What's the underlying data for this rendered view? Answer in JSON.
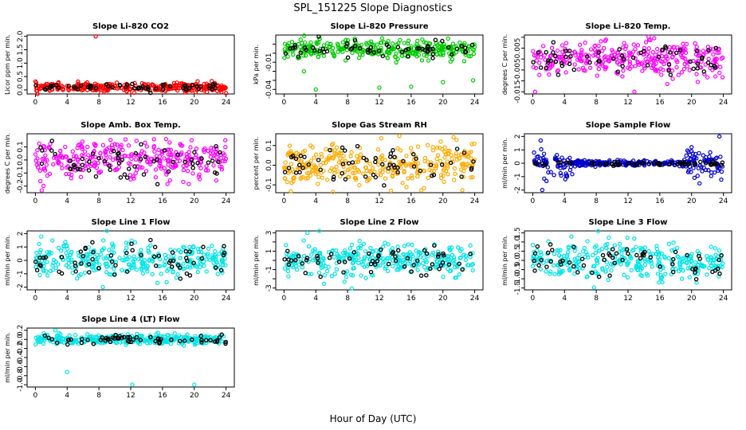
{
  "figure": {
    "title": "SPL_151225  Slope Diagnostics",
    "xlabel": "Hour of Day (UTC)"
  },
  "chart_data": [
    {
      "type": "scatter",
      "title": "Slope Li-820 CO2",
      "ylabel": "Licor ppm per min.",
      "color": "#ff0000",
      "xlim": [
        0,
        24
      ],
      "ylim": [
        -0.15,
        2.05
      ],
      "xticks": [
        0,
        4,
        8,
        12,
        16,
        20,
        24
      ],
      "yticks": [
        0,
        0.5,
        1,
        1.5,
        2
      ],
      "ytick_labels": [
        "0.0",
        "0.5",
        "1.0",
        "1.5",
        "2.0"
      ],
      "center": 0.1,
      "spread": 0.08,
      "outliers": [
        [
          7.6,
          2.0
        ],
        [
          24,
          -0.12
        ]
      ]
    },
    {
      "type": "scatter",
      "title": "Slope Li-820 Pressure",
      "ylabel": "kPa per min.",
      "color": "#00cc00",
      "xlim": [
        0,
        24
      ],
      "ylim": [
        -0.045,
        0.02
      ],
      "xticks": [
        0,
        4,
        8,
        12,
        16,
        20,
        24
      ],
      "yticks": [
        -0.04,
        -0.03,
        -0.02,
        -0.01,
        0,
        0.01
      ],
      "ytick_labels": [
        "-0.04",
        "",
        "",
        "-0.01",
        "",
        ""
      ],
      "center": 0.004,
      "spread": 0.005,
      "outliers": [
        [
          4,
          -0.04
        ],
        [
          12,
          -0.038
        ],
        [
          16,
          -0.037
        ],
        [
          23.8,
          -0.03
        ],
        [
          2.5,
          -0.02
        ],
        [
          20,
          -0.032
        ]
      ]
    },
    {
      "type": "scatter",
      "title": "Slope Li-820 Temp.",
      "ylabel": "degrees C per min.",
      "color": "#ff00ff",
      "xlim": [
        0,
        24
      ],
      "ylim": [
        -0.016,
        0.011
      ],
      "xticks": [
        0,
        4,
        8,
        12,
        16,
        20,
        24
      ],
      "yticks": [
        -0.015,
        -0.01,
        -0.005,
        0,
        0.005,
        0.01
      ],
      "ytick_labels": [
        "-0.015",
        "",
        "-0.005",
        "",
        "0.005",
        ""
      ],
      "center": 0.0,
      "spread": 0.004,
      "outliers": [
        [
          0.3,
          -0.015
        ],
        [
          12.8,
          -0.015
        ]
      ]
    },
    {
      "type": "scatter",
      "title": "Slope Amb. Box Temp.",
      "ylabel": "degrees C per min.",
      "color": "#ff00ff",
      "xlim": [
        0,
        24
      ],
      "ylim": [
        -0.25,
        0.2
      ],
      "xticks": [
        0,
        4,
        8,
        12,
        16,
        20,
        24
      ],
      "yticks": [
        -0.2,
        -0.1,
        0,
        0.1
      ],
      "ytick_labels": [
        "-0.2",
        "-0.1",
        "0.0",
        "0.1"
      ],
      "center": 0.0,
      "spread": 0.07,
      "outliers": []
    },
    {
      "type": "scatter",
      "title": "Slope Gas Stream RH",
      "ylabel": "percent per min.",
      "color": "#ffaa00",
      "xlim": [
        0,
        24
      ],
      "ylim": [
        -0.14,
        0.16
      ],
      "xticks": [
        0,
        4,
        8,
        12,
        16,
        20,
        24
      ],
      "yticks": [
        -0.1,
        0,
        0.1
      ],
      "ytick_labels": [
        "-0.1",
        "0.0",
        "0.1"
      ],
      "center": 0.0,
      "spread": 0.055,
      "outliers": []
    },
    {
      "type": "scatter",
      "title": "Slope Sample Flow",
      "ylabel": "ml/min per min.",
      "color": "#0000cc",
      "xlim": [
        0,
        24
      ],
      "ylim": [
        -2.2,
        2.2
      ],
      "xticks": [
        0,
        4,
        8,
        12,
        16,
        20,
        24
      ],
      "yticks": [
        -2,
        -1,
        0,
        1,
        2
      ],
      "ytick_labels": [
        "-2",
        "-1",
        "0",
        "1",
        "2"
      ],
      "center": 0.0,
      "spread": 0.1,
      "outliers": [
        [
          1,
          1.7
        ],
        [
          1.2,
          -2
        ],
        [
          20,
          1.2
        ],
        [
          23.5,
          2.0
        ],
        [
          21,
          -1.5
        ],
        [
          4.1,
          -1.2
        ],
        [
          4.3,
          -0.9
        ]
      ]
    },
    {
      "type": "scatter",
      "title": "Slope Line 1 Flow",
      "ylabel": "ml/min per min.",
      "color": "#00e5e5",
      "xlim": [
        0,
        24
      ],
      "ylim": [
        -2.2,
        2.2
      ],
      "xticks": [
        0,
        4,
        8,
        12,
        16,
        20,
        24
      ],
      "yticks": [
        -2,
        -1,
        0,
        1,
        2
      ],
      "ytick_labels": [
        "-2",
        "-1",
        "0",
        "1",
        "2"
      ],
      "center": 0.0,
      "spread": 0.6,
      "outliers": [
        [
          8.5,
          -2.0
        ],
        [
          9,
          2.3
        ]
      ]
    },
    {
      "type": "scatter",
      "title": "Slope Line 2 Flow",
      "ylabel": "ml/min per min.",
      "color": "#00e5e5",
      "xlim": [
        0,
        24
      ],
      "ylim": [
        -3.2,
        3.2
      ],
      "xticks": [
        0,
        4,
        8,
        12,
        16,
        20,
        24
      ],
      "yticks": [
        -3,
        -2,
        -1,
        0,
        1,
        2,
        3
      ],
      "ytick_labels": [
        "-3",
        "",
        "-1",
        "",
        "1",
        "",
        "3"
      ],
      "center": 0.0,
      "spread": 0.9,
      "outliers": []
    },
    {
      "type": "scatter",
      "title": "Slope Line 3 Flow",
      "ylabel": "ml/min per min.",
      "color": "#00e5e5",
      "xlim": [
        0,
        24
      ],
      "ylim": [
        -1.6,
        1.6
      ],
      "xticks": [
        0,
        4,
        8,
        12,
        16,
        20,
        24
      ],
      "yticks": [
        -1.5,
        -1,
        -0.5,
        0,
        0.5,
        1,
        1.5
      ],
      "ytick_labels": [
        "-1.5",
        "-1.0",
        "-0.5",
        "0.0",
        "0.5",
        "1.0",
        "1.5"
      ],
      "center": 0.0,
      "spread": 0.5,
      "outliers": []
    },
    {
      "type": "scatter",
      "title": "Slope Line 4 (LT) Flow",
      "ylabel": "ml/min per min.",
      "color": "#00e5e5",
      "xlim": [
        0,
        24
      ],
      "ylim": [
        -1.05,
        0.25
      ],
      "xticks": [
        0,
        4,
        8,
        12,
        16,
        20,
        24
      ],
      "yticks": [
        -1,
        -0.8,
        -0.6,
        -0.4,
        -0.2,
        0,
        0.2
      ],
      "ytick_labels": [
        "-1.0",
        "-0.8",
        "-0.6",
        "-0.4",
        "-0.2",
        "0.0",
        "0.2"
      ],
      "center": 0.0,
      "spread": 0.05,
      "outliers": [
        [
          4,
          -0.72
        ],
        [
          12.2,
          -1.0
        ],
        [
          20,
          -1.0
        ],
        [
          2.5,
          0.2
        ]
      ]
    }
  ]
}
